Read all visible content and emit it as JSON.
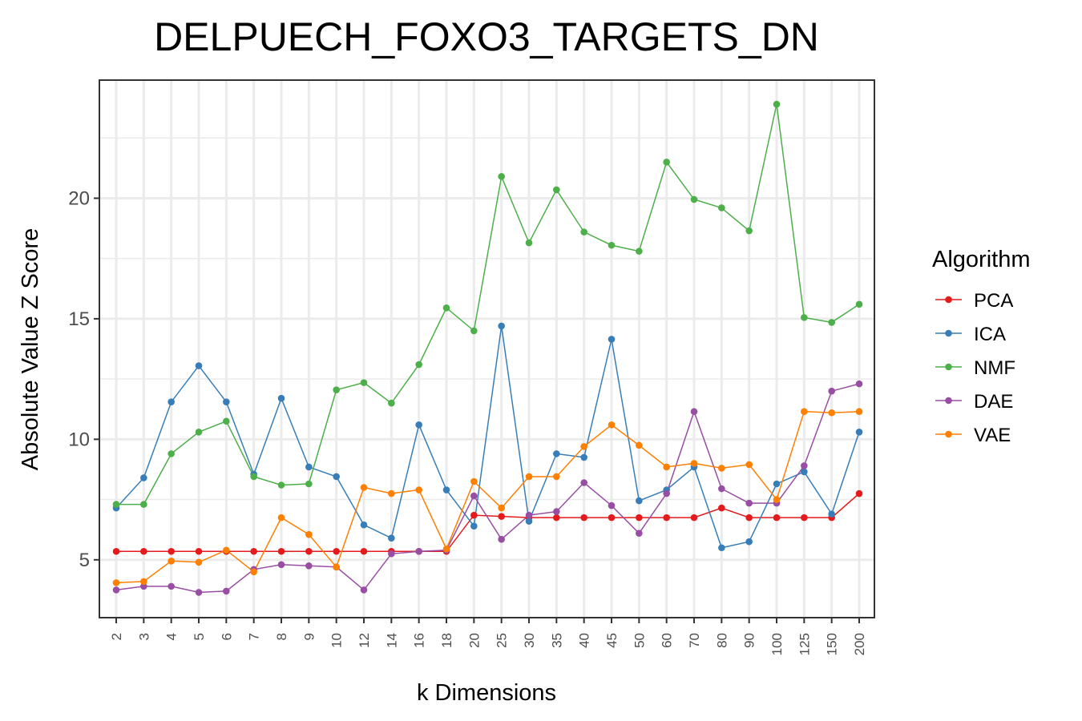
{
  "chart_data": {
    "type": "line",
    "title": "DELPUECH_FOXO3_TARGETS_DN",
    "xlabel": "k Dimensions",
    "ylabel": "Absolute Value Z Score",
    "categories": [
      "2",
      "3",
      "4",
      "5",
      "6",
      "7",
      "8",
      "9",
      "10",
      "12",
      "14",
      "16",
      "18",
      "20",
      "25",
      "30",
      "35",
      "40",
      "45",
      "50",
      "60",
      "70",
      "80",
      "90",
      "100",
      "125",
      "150",
      "200"
    ],
    "yticks": [
      5,
      10,
      15,
      20
    ],
    "ylim": [
      2.6,
      24.9
    ],
    "grid": true,
    "legend": {
      "title": "Algorithm",
      "position": "right"
    },
    "series": [
      {
        "name": "PCA",
        "color": "#e41a1c",
        "values": [
          5.35,
          5.35,
          5.35,
          5.35,
          5.35,
          5.35,
          5.35,
          5.35,
          5.35,
          5.35,
          5.35,
          5.35,
          5.35,
          6.85,
          6.8,
          6.75,
          6.75,
          6.75,
          6.75,
          6.75,
          6.75,
          6.75,
          7.15,
          6.75,
          6.75,
          6.75,
          6.75,
          7.75
        ]
      },
      {
        "name": "ICA",
        "color": "#377eb8",
        "values": [
          7.15,
          8.4,
          11.55,
          13.05,
          11.55,
          8.55,
          11.7,
          8.85,
          8.45,
          6.45,
          5.9,
          10.6,
          7.9,
          6.4,
          14.7,
          6.6,
          9.4,
          9.25,
          14.15,
          7.45,
          7.9,
          8.85,
          5.5,
          5.75,
          8.15,
          8.65,
          6.9,
          10.3
        ]
      },
      {
        "name": "NMF",
        "color": "#4daf4a",
        "values": [
          7.3,
          7.3,
          9.4,
          10.3,
          10.75,
          8.45,
          8.1,
          8.15,
          12.05,
          12.35,
          11.5,
          13.1,
          15.45,
          14.5,
          20.9,
          18.15,
          20.35,
          18.6,
          18.05,
          17.8,
          21.5,
          19.95,
          19.6,
          18.65,
          23.9,
          15.05,
          14.85,
          15.6
        ]
      },
      {
        "name": "DAE",
        "color": "#984ea3",
        "values": [
          3.75,
          3.9,
          3.9,
          3.65,
          3.7,
          4.6,
          4.8,
          4.75,
          4.7,
          3.75,
          5.25,
          5.35,
          5.4,
          7.65,
          5.85,
          6.85,
          7.0,
          8.2,
          7.25,
          6.1,
          7.75,
          11.15,
          7.95,
          7.35,
          7.35,
          8.9,
          12.0,
          12.3
        ]
      },
      {
        "name": "VAE",
        "color": "#ff7f00",
        "values": [
          4.05,
          4.1,
          4.95,
          4.9,
          5.4,
          4.5,
          6.75,
          6.05,
          4.7,
          8.0,
          7.75,
          7.9,
          5.45,
          8.25,
          7.15,
          8.45,
          8.45,
          9.7,
          10.6,
          9.75,
          8.85,
          9.0,
          8.8,
          8.95,
          7.5,
          11.15,
          11.1,
          11.15
        ]
      }
    ]
  }
}
